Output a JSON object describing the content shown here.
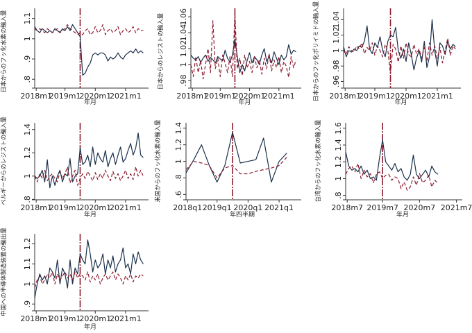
{
  "chart_data": [
    {
      "type": "line",
      "title": "",
      "ylabel": "日本からのフッ化水素の輸入量",
      "xlabel": "年月",
      "x_ticks": [
        "2018m1",
        "2019m1",
        "2020m1",
        "2021m1"
      ],
      "y_ticks": [
        ".8",
        ".9",
        "1",
        "1.1"
      ],
      "xlim": [
        0,
        44
      ],
      "ylim": [
        0.77,
        1.14
      ],
      "event_x": 18,
      "series": [
        {
          "name": "actual",
          "style": "solid",
          "color": "#1a2f4a",
          "values": [
            1.06,
            1.04,
            1.03,
            1.05,
            1.04,
            1.03,
            1.04,
            1.03,
            1.05,
            1.04,
            1.03,
            1.05,
            1.04,
            1.06,
            1.04,
            1.07,
            1.05,
            1.03,
            1.01,
            0.82,
            0.83,
            0.86,
            0.88,
            0.92,
            0.93,
            0.92,
            0.93,
            0.93,
            0.92,
            0.89,
            0.91,
            0.9,
            0.91,
            0.93,
            0.91,
            0.9,
            0.92,
            0.93,
            0.94,
            0.93,
            0.95,
            0.93,
            0.94,
            0.93
          ]
        },
        {
          "name": "synthetic",
          "style": "dash",
          "color": "#8b1a2e",
          "values": [
            1.05,
            1.04,
            1.05,
            1.04,
            1.03,
            1.05,
            1.04,
            1.03,
            1.04,
            1.05,
            1.03,
            1.04,
            1.05,
            1.07,
            1.05,
            1.04,
            1.03,
            1.02,
            1.03,
            1.02,
            1.04,
            1.05,
            1.02,
            1.03,
            1.06,
            1.03,
            1.04,
            1.07,
            1.02,
            1.04,
            1.05,
            1.03,
            1.04,
            1.06,
            1.02,
            1.04,
            1.05,
            1.03,
            1.04,
            1.06,
            1.03,
            1.05,
            1.04,
            1.04
          ]
        }
      ]
    },
    {
      "type": "line",
      "title": "",
      "ylabel": "日本からのレジストの輸入量",
      "xlabel": "年月",
      "x_ticks": [
        "2018m1",
        "2019m1",
        "2020m1",
        "2021m1"
      ],
      "y_ticks": [
        ".98",
        "1",
        "1.02",
        "1.04",
        "1.06"
      ],
      "xlim": [
        0,
        44
      ],
      "ylim": [
        0.974,
        1.068
      ],
      "event_x": 18,
      "series": [
        {
          "name": "actual",
          "style": "solid",
          "color": "#1a2f4a",
          "values": [
            1.012,
            1.008,
            1.006,
            1.01,
            1.003,
            1.008,
            1.012,
            1.004,
            1.009,
            1.006,
            1.002,
            1.01,
            1.007,
            1.005,
            1.018,
            1.008,
            1.003,
            1.012,
            1.032,
            1.01,
            0.99,
            1.0,
            0.992,
            1.005,
            1.015,
            1.002,
            1.01,
            1.006,
            1.0,
            1.012,
            1.02,
            1.004,
            1.01,
            1.002,
            1.016,
            1.008,
            1.0,
            1.012,
            1.006,
            1.01,
            1.025,
            1.013,
            1.018,
            1.016
          ]
        },
        {
          "name": "synthetic",
          "style": "dash",
          "color": "#8b1a2e",
          "values": [
            1.0,
            0.985,
            1.01,
            0.99,
            1.005,
            0.982,
            1.0,
            1.02,
            0.99,
            1.055,
            0.995,
            1.008,
            0.985,
            1.012,
            1.002,
            0.99,
            1.01,
            0.985,
            1.065,
            0.995,
            1.008,
            0.986,
            1.012,
            0.996,
            1.004,
            0.99,
            1.01,
            0.996,
            1.006,
            0.988,
            1.008,
            0.995,
            1.014,
            0.992,
            1.006,
            0.996,
            1.01,
            0.99,
            1.004,
            0.998,
            0.984,
            1.01,
            0.996,
            1.006
          ]
        }
      ]
    },
    {
      "type": "line",
      "title": "",
      "ylabel": "日本からのフッ化ポリイミドの輸入量",
      "xlabel": "年月",
      "x_ticks": [
        "2018m1",
        "2019m1",
        "2020m1",
        "2021m1"
      ],
      "y_ticks": [
        ".96",
        ".98",
        "1",
        "1.02",
        "1.04"
      ],
      "xlim": [
        0,
        44
      ],
      "ylim": [
        0.955,
        1.052
      ],
      "event_x": 18,
      "series": [
        {
          "name": "actual",
          "style": "solid",
          "color": "#1a2f4a",
          "values": [
            1.005,
            0.992,
            1.0,
            0.998,
            1.002,
            1.0,
            1.006,
            1.004,
            1.012,
            1.032,
            1.002,
            0.996,
            1.01,
            1.004,
            1.018,
            1.0,
            0.992,
            1.012,
            1.02,
            1.018,
            1.03,
            1.0,
            0.99,
            1.002,
            0.986,
            1.01,
            0.995,
            0.975,
            0.99,
            1.0,
            0.985,
            1.012,
            0.978,
            0.992,
            1.04,
            1.0,
            0.98,
            1.01,
            1.006,
            0.995,
            1.012,
            1.002,
            1.008,
            1.005
          ]
        },
        {
          "name": "synthetic",
          "style": "dash",
          "color": "#8b1a2e",
          "values": [
            1.0,
            0.995,
            1.005,
            1.0,
            0.998,
            1.006,
            1.002,
            1.01,
            0.996,
            1.004,
            1.0,
            1.01,
            0.994,
            1.006,
            1.0,
            0.992,
            1.008,
            1.0,
            0.97,
            1.008,
            1.002,
            0.985,
            1.006,
            0.99,
            1.01,
            0.995,
            0.992,
            1.008,
            0.996,
            1.002,
            0.99,
            1.004,
            0.986,
            1.01,
            0.994,
            1.006,
            0.99,
            1.004,
            0.984,
            1.0,
            1.016,
            0.994,
            1.006,
            1.002
          ]
        }
      ]
    },
    {
      "type": "line",
      "title": "",
      "ylabel": "ベルギーからのレジストの輸入量",
      "xlabel": "年月",
      "x_ticks": [
        "2018m1",
        "2019m1",
        "2020m1",
        "2021m1"
      ],
      "y_ticks": [
        ".8",
        "1",
        "1.2",
        "1.4"
      ],
      "xlim": [
        0,
        44
      ],
      "ylim": [
        0.82,
        1.44
      ],
      "event_x": 18,
      "series": [
        {
          "name": "actual",
          "style": "solid",
          "color": "#1a2f4a",
          "values": [
            1.0,
            0.98,
            1.0,
            1.05,
            0.95,
            1.14,
            0.9,
            1.0,
            0.92,
            1.0,
            1.05,
            0.95,
            1.02,
            1.0,
            1.15,
            0.95,
            1.0,
            1.02,
            1.24,
            1.1,
            1.12,
            1.18,
            1.08,
            1.25,
            1.1,
            1.2,
            1.15,
            1.12,
            1.22,
            1.08,
            1.15,
            1.2,
            1.1,
            1.18,
            1.25,
            1.12,
            1.15,
            1.22,
            1.28,
            1.18,
            1.24,
            1.37,
            1.18,
            1.16
          ]
        },
        {
          "name": "synthetic",
          "style": "dash",
          "color": "#8b1a2e",
          "values": [
            1.0,
            0.95,
            1.02,
            0.98,
            1.05,
            0.96,
            1.0,
            1.02,
            0.98,
            0.95,
            1.04,
            0.98,
            1.02,
            1.08,
            0.94,
            1.0,
            1.05,
            0.92,
            0.98,
            1.02,
            0.98,
            1.04,
            1.0,
            0.96,
            1.03,
            0.97,
            1.02,
            0.98,
            1.05,
            1.0,
            0.96,
            1.04,
            0.98,
            1.02,
            0.96,
            1.0,
            1.05,
            0.98,
            1.02,
            0.97,
            1.08,
            1.0,
            1.05,
            1.0
          ]
        }
      ]
    },
    {
      "type": "line",
      "title": "",
      "ylabel": "米国からのフッ化水素の輸入量",
      "xlabel": "年四半期",
      "x_ticks": [
        "2018q1",
        "2019q1",
        "2020q1",
        "2021q1"
      ],
      "y_ticks": [
        ".6",
        ".8",
        "1",
        "1.2",
        "1.4"
      ],
      "xlim": [
        0,
        14.5
      ],
      "ylim": [
        0.57,
        1.44
      ],
      "event_x": 6,
      "series": [
        {
          "name": "actual",
          "style": "solid",
          "color": "#1a2f4a",
          "values": [
            0.86,
            1.02,
            1.2,
            0.95,
            0.75,
            0.95,
            1.35,
            0.98,
            1.0,
            1.02,
            1.28,
            0.75,
            1.0,
            1.1
          ]
        },
        {
          "name": "synthetic",
          "style": "dash",
          "color": "#8b1a2e",
          "values": [
            0.9,
            1.0,
            0.98,
            0.95,
            0.8,
            0.92,
            0.95,
            0.85,
            0.85,
            0.88,
            0.9,
            0.92,
            0.95,
            1.05
          ]
        }
      ]
    },
    {
      "type": "line",
      "title": "",
      "ylabel": "台湾からのフッ化水素の輸入量",
      "xlabel": "年月",
      "x_ticks": [
        "2018m7",
        "2019m7",
        "2020m7",
        "2021m7"
      ],
      "y_ticks": [
        ".8",
        "1",
        "1.2",
        "1.4",
        "1.6"
      ],
      "xlim": [
        0,
        37
      ],
      "ylim": [
        0.78,
        1.64
      ],
      "event_x": 12,
      "series": [
        {
          "name": "actual",
          "style": "solid",
          "color": "#1a2f4a",
          "values": [
            1.32,
            1.15,
            1.1,
            1.12,
            1.08,
            1.15,
            1.05,
            1.1,
            1.0,
            1.02,
            0.98,
            1.25,
            1.46,
            1.2,
            1.15,
            1.1,
            1.18,
            1.08,
            1.12,
            1.02,
            0.98,
            1.05,
            1.28,
            1.05,
            1.0,
            1.05,
            1.1,
            1.02,
            1.15,
            1.08,
            1.05
          ]
        },
        {
          "name": "synthetic",
          "style": "dash",
          "color": "#8b1a2e",
          "values": [
            1.05,
            1.12,
            1.15,
            1.08,
            1.18,
            1.0,
            1.1,
            1.02,
            1.06,
            0.95,
            1.05,
            1.08,
            1.0,
            1.04,
            1.05,
            0.98,
            1.02,
            1.0,
            0.88,
            0.96,
            0.86,
            0.9,
            1.02,
            0.92,
            1.06,
            0.95,
            0.98,
            1.04,
            0.9,
            0.98,
            0.94
          ]
        }
      ]
    },
    {
      "type": "line",
      "title": "",
      "ylabel": "中国への半導体製造装置の輸出量",
      "xlabel": "年月",
      "x_ticks": [
        "2018m1",
        "2019m1",
        "2020m1",
        "2021m1"
      ],
      "y_ticks": [
        ".9",
        "1",
        "1.1",
        "1.2"
      ],
      "xlim": [
        0,
        44
      ],
      "ylim": [
        0.88,
        1.24
      ],
      "event_x": 18,
      "series": [
        {
          "name": "actual",
          "style": "solid",
          "color": "#1a2f4a",
          "values": [
            0.93,
            1.0,
            1.05,
            1.02,
            1.04,
            1.0,
            1.08,
            1.06,
            1.03,
            1.12,
            1.0,
            1.08,
            1.05,
            0.98,
            1.12,
            1.0,
            1.08,
            1.05,
            1.15,
            1.12,
            1.1,
            1.22,
            1.15,
            1.06,
            1.12,
            1.08,
            1.1,
            1.15,
            1.05,
            1.12,
            1.08,
            1.14,
            1.06,
            1.1,
            1.12,
            1.18,
            1.08,
            1.1,
            1.05,
            1.15,
            1.1,
            1.16,
            1.12,
            1.1
          ]
        },
        {
          "name": "synthetic",
          "style": "dash",
          "color": "#8b1a2e",
          "values": [
            0.98,
            1.02,
            1.04,
            1.0,
            1.02,
            1.05,
            1.03,
            1.06,
            1.0,
            1.05,
            1.02,
            1.04,
            1.06,
            1.03,
            1.05,
            1.02,
            1.06,
            1.03,
            1.05,
            1.04,
            1.02,
            1.06,
            1.01,
            1.04,
            1.02,
            1.05,
            1.0,
            1.03,
            1.05,
            1.02,
            1.04,
            1.06,
            1.02,
            1.05,
            1.03,
            1.0,
            1.04,
            1.02,
            1.05,
            1.01,
            1.04,
            1.03,
            1.05,
            1.04
          ]
        }
      ]
    }
  ],
  "style": {
    "actual_color": "#1a2f4a",
    "synthetic_color": "#8b1a2e",
    "event_color": "#8b1a2e",
    "axis_color": "#333333"
  }
}
